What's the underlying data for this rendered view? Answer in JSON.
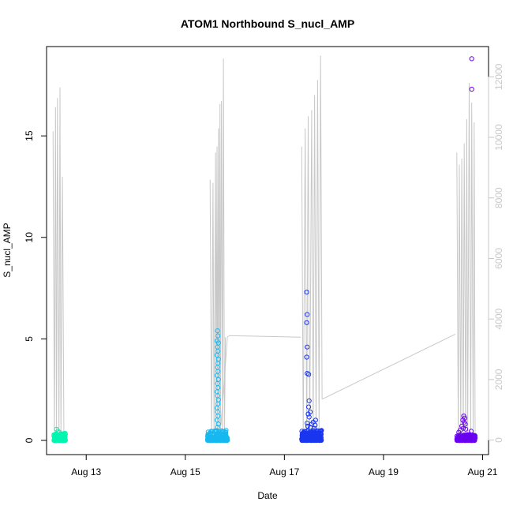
{
  "chart_data": {
    "type": "scatter",
    "title": "ATOM1 Northbound S_nucl_AMP",
    "xlabel": "Date",
    "ylabel": "S_nucl_AMP",
    "x_ticks": [
      "Aug 13",
      "Aug 15",
      "Aug 17",
      "Aug 19",
      "Aug 21"
    ],
    "x_tick_values": [
      13,
      15,
      17,
      19,
      21
    ],
    "xlim": [
      12.2,
      21.12
    ],
    "ylim": [
      -0.7,
      19.4
    ],
    "y_ticks": [
      0,
      5,
      10,
      15
    ],
    "y2lim": [
      -480,
      13000
    ],
    "y2_ticks": [
      0,
      2000,
      4000,
      6000,
      8000,
      10000,
      12000
    ],
    "y2_color": "#c8c8c8",
    "series": [
      {
        "color": "#00f5b0",
        "x_range": [
          12.35,
          12.58
        ],
        "base_max": 0.35,
        "points": [
          [
            12.4,
            0.55
          ],
          [
            12.43,
            0.45
          ],
          [
            12.46,
            0.4
          ],
          [
            12.5,
            0.3
          ]
        ]
      },
      {
        "color": "#18b8f0",
        "x_range": [
          15.45,
          15.85
        ],
        "base_max": 0.5,
        "points": [
          [
            15.65,
            5.4
          ],
          [
            15.66,
            5.15
          ],
          [
            15.64,
            4.9
          ],
          [
            15.67,
            4.8
          ],
          [
            15.65,
            4.6
          ],
          [
            15.66,
            4.4
          ],
          [
            15.64,
            4.2
          ],
          [
            15.67,
            4.0
          ],
          [
            15.66,
            3.8
          ],
          [
            15.65,
            3.6
          ],
          [
            15.66,
            3.4
          ],
          [
            15.64,
            3.2
          ],
          [
            15.67,
            3.0
          ],
          [
            15.65,
            2.8
          ],
          [
            15.66,
            2.6
          ],
          [
            15.64,
            2.4
          ],
          [
            15.65,
            2.2
          ],
          [
            15.67,
            2.0
          ],
          [
            15.66,
            1.8
          ],
          [
            15.64,
            1.6
          ],
          [
            15.65,
            1.4
          ],
          [
            15.66,
            1.2
          ],
          [
            15.64,
            1.0
          ],
          [
            15.67,
            0.8
          ],
          [
            15.65,
            0.65
          ]
        ]
      },
      {
        "color": "#1a36f0",
        "x_range": [
          17.35,
          17.75
        ],
        "base_max": 0.5,
        "points": [
          [
            17.45,
            7.3
          ],
          [
            17.46,
            6.2
          ],
          [
            17.45,
            5.8
          ],
          [
            17.46,
            4.6
          ],
          [
            17.45,
            4.1
          ],
          [
            17.46,
            3.3
          ],
          [
            17.49,
            3.25
          ],
          [
            17.5,
            1.95
          ],
          [
            17.49,
            1.65
          ],
          [
            17.52,
            1.4
          ],
          [
            17.48,
            1.3
          ],
          [
            17.5,
            1.15
          ],
          [
            17.63,
            1.0
          ],
          [
            17.58,
            0.9
          ],
          [
            17.46,
            0.85
          ],
          [
            17.55,
            0.8
          ],
          [
            17.62,
            0.75
          ],
          [
            17.47,
            0.7
          ],
          [
            17.52,
            0.65
          ],
          [
            17.6,
            0.6
          ]
        ]
      },
      {
        "color": "#6a00f0",
        "x_range": [
          20.48,
          20.85
        ],
        "base_max": 0.3,
        "points": [
          [
            20.78,
            18.8
          ],
          [
            20.78,
            17.3
          ],
          [
            20.62,
            1.2
          ],
          [
            20.64,
            1.1
          ],
          [
            20.6,
            1.0
          ],
          [
            20.63,
            0.9
          ],
          [
            20.65,
            0.8
          ],
          [
            20.58,
            0.7
          ],
          [
            20.61,
            0.6
          ],
          [
            20.66,
            0.55
          ],
          [
            20.55,
            0.5
          ],
          [
            20.77,
            0.45
          ],
          [
            20.52,
            0.4
          ]
        ]
      }
    ],
    "line_series": {
      "color": "#c8c8c8",
      "axis": "right",
      "segments": [
        [
          [
            12.33,
            10200
          ],
          [
            12.36,
            0
          ],
          [
            12.38,
            11000
          ],
          [
            12.4,
            0
          ],
          [
            12.42,
            11300
          ],
          [
            12.45,
            0
          ],
          [
            12.47,
            11650
          ],
          [
            12.49,
            0
          ],
          [
            12.52,
            8700
          ],
          [
            12.55,
            0
          ],
          [
            12.56,
            250
          ]
        ],
        [
          [
            15.72,
            500
          ],
          [
            15.85,
            3400
          ],
          [
            15.88,
            3450
          ]
        ],
        [
          [
            15.5,
            8600
          ],
          [
            15.53,
            0
          ],
          [
            15.56,
            8500
          ],
          [
            15.58,
            0
          ],
          [
            15.61,
            9500
          ],
          [
            15.62,
            0
          ],
          [
            15.64,
            9700
          ],
          [
            15.65,
            0
          ],
          [
            15.67,
            10300
          ],
          [
            15.68,
            0
          ],
          [
            15.7,
            11100
          ],
          [
            15.71,
            0
          ],
          [
            15.73,
            11200
          ],
          [
            15.75,
            0
          ],
          [
            15.77,
            12600
          ],
          [
            15.79,
            0
          ],
          [
            15.81,
            3400
          ]
        ],
        [
          [
            15.88,
            3450
          ],
          [
            17.33,
            3400
          ]
        ],
        [
          [
            17.35,
            9700
          ],
          [
            17.38,
            0
          ],
          [
            17.42,
            10300
          ],
          [
            17.45,
            0
          ],
          [
            17.48,
            10700
          ],
          [
            17.51,
            0
          ],
          [
            17.55,
            10900
          ],
          [
            17.58,
            0
          ],
          [
            17.61,
            11400
          ],
          [
            17.64,
            0
          ],
          [
            17.67,
            11900
          ],
          [
            17.7,
            0
          ],
          [
            17.73,
            12700
          ],
          [
            17.76,
            1350
          ]
        ],
        [
          [
            17.76,
            1350
          ],
          [
            20.45,
            3500
          ]
        ],
        [
          [
            20.48,
            9500
          ],
          [
            20.51,
            0
          ],
          [
            20.53,
            9100
          ],
          [
            20.56,
            0
          ],
          [
            20.58,
            9300
          ],
          [
            20.61,
            0
          ],
          [
            20.63,
            9800
          ],
          [
            20.66,
            0
          ],
          [
            20.68,
            10600
          ],
          [
            20.7,
            0
          ],
          [
            20.73,
            11800
          ],
          [
            20.76,
            0
          ],
          [
            20.78,
            11150
          ],
          [
            20.81,
            200
          ],
          [
            20.83,
            10500
          ],
          [
            20.85,
            150
          ]
        ]
      ]
    },
    "grid": false,
    "legend": "none"
  }
}
